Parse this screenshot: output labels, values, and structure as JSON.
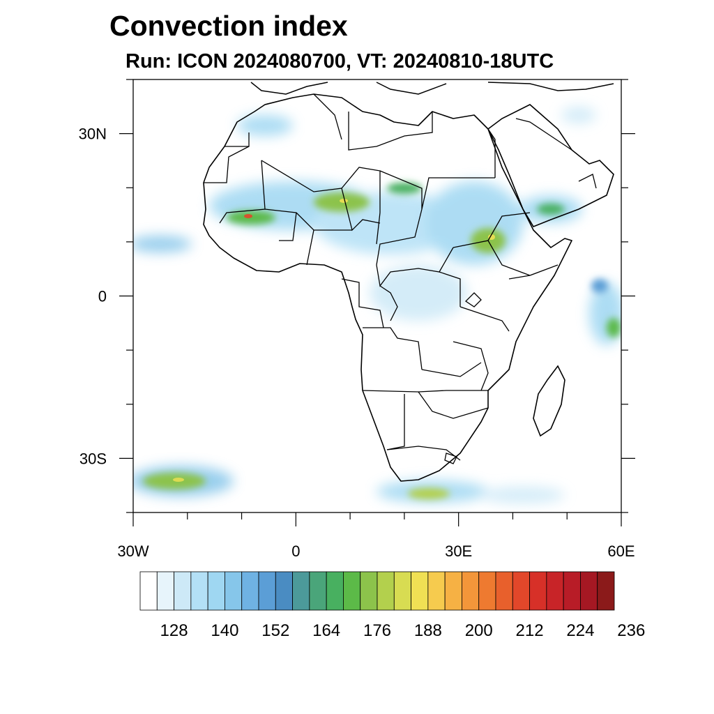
{
  "title": "Convection index",
  "subtitle": "Run: ICON 2024080700,  VT: 20240810-18UTC",
  "map": {
    "extent": {
      "lon": [
        -30,
        60
      ],
      "lat": [
        -40,
        40
      ]
    },
    "lat_ticks": [
      {
        "value": 30,
        "label": "30N"
      },
      {
        "value": 0,
        "label": "0"
      },
      {
        "value": -30,
        "label": "30S"
      }
    ],
    "lon_ticks": [
      {
        "value": -30,
        "label": "30W"
      },
      {
        "value": 0,
        "label": "0"
      },
      {
        "value": 30,
        "label": "30E"
      },
      {
        "value": 60,
        "label": "60E"
      }
    ]
  },
  "colorbar": {
    "labels": [
      "128",
      "140",
      "152",
      "164",
      "176",
      "188",
      "200",
      "212",
      "224",
      "236"
    ],
    "colors": [
      "#ffffff",
      "#e7f4fb",
      "#cde9f7",
      "#b3e0f6",
      "#9fd7f2",
      "#86c6ea",
      "#6fb2e3",
      "#5b9ed6",
      "#4a8cc2",
      "#4c9a9a",
      "#4aa57a",
      "#48b060",
      "#5cba48",
      "#8cc34b",
      "#b3d04d",
      "#d8dc52",
      "#f0e054",
      "#f6cb4e",
      "#f6b144",
      "#f3963a",
      "#ee7a30",
      "#e8602c",
      "#e2472a",
      "#d73028",
      "#c82428",
      "#b81c27",
      "#a51823",
      "#8b1a1a"
    ]
  }
}
